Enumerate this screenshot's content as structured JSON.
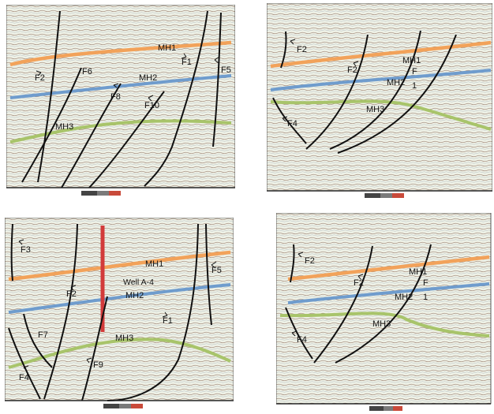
{
  "figure": {
    "panels": [
      {
        "id": "panel-top-left",
        "horizons": [
          "MH1",
          "MH2",
          "MH3"
        ],
        "faults": [
          "F1",
          "F2",
          "F5",
          "F6",
          "F8",
          "F10"
        ]
      },
      {
        "id": "panel-top-right",
        "horizons": [
          "MH1",
          "MH2",
          "MH3"
        ],
        "faults": [
          "F2",
          "F2",
          "F4",
          "F"
        ],
        "extra": "1"
      },
      {
        "id": "panel-bottom-left",
        "horizons": [
          "MH1",
          "MH2",
          "MH3"
        ],
        "faults": [
          "F1",
          "F2",
          "F3",
          "F4",
          "F5",
          "F7",
          "F9"
        ],
        "well": "Well A-4"
      },
      {
        "id": "panel-bottom-right",
        "horizons": [
          "MH1",
          "MH2",
          "MH3"
        ],
        "faults": [
          "F2",
          "F2",
          "F4",
          "F"
        ],
        "extra": "1"
      }
    ],
    "horizon_colors": {
      "MH1": "#f2a25a",
      "MH2": "#6f9ccd",
      "MH3": "#a8c46a"
    },
    "fault_color": "#111111",
    "well_color": "#d23a3a",
    "seismic_background": "#e9eee0"
  }
}
